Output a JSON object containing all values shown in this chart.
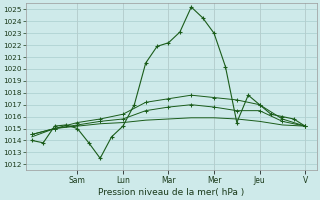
{
  "bg_color": "#ceeaea",
  "grid_color": "#aacece",
  "line_color": "#1a5c1a",
  "xlabel": "Pression niveau de la mer( hPa )",
  "ylim": [
    1011.5,
    1025.5
  ],
  "ytick_min": 1012,
  "ytick_max": 1025,
  "day_labels": [
    "Sam",
    "Lun",
    "Mar",
    "Mer",
    "Jeu",
    "V"
  ],
  "series1_x": [
    0,
    1,
    2,
    3,
    4,
    5,
    6,
    7,
    8,
    9,
    10,
    11,
    12,
    13,
    14,
    15,
    16,
    17,
    18,
    19,
    20,
    21,
    22,
    23,
    24
  ],
  "series1_y": [
    1014.0,
    1013.8,
    1015.2,
    1015.3,
    1015.0,
    1013.8,
    1012.5,
    1014.3,
    1015.2,
    1017.0,
    1020.5,
    1021.9,
    1022.2,
    1023.1,
    1025.2,
    1024.3,
    1023.0,
    1020.2,
    1015.5,
    1017.8,
    1017.0,
    1016.2,
    1016.0,
    1015.8,
    1015.2
  ],
  "series2_x": [
    0,
    2,
    4,
    6,
    8,
    10,
    12,
    14,
    16,
    18,
    20,
    22,
    24
  ],
  "series2_y": [
    1014.5,
    1015.0,
    1015.5,
    1015.8,
    1016.2,
    1017.2,
    1017.5,
    1017.8,
    1017.6,
    1017.4,
    1017.0,
    1015.8,
    1015.2
  ],
  "series3_x": [
    0,
    2,
    4,
    6,
    8,
    10,
    12,
    14,
    16,
    18,
    20,
    22,
    24
  ],
  "series3_y": [
    1014.5,
    1015.0,
    1015.3,
    1015.6,
    1015.8,
    1016.5,
    1016.8,
    1017.0,
    1016.8,
    1016.5,
    1016.5,
    1015.6,
    1015.2
  ],
  "series4_x": [
    0,
    2,
    4,
    6,
    8,
    10,
    12,
    14,
    16,
    18,
    20,
    22,
    24
  ],
  "series4_y": [
    1014.3,
    1015.0,
    1015.2,
    1015.4,
    1015.5,
    1015.7,
    1015.8,
    1015.9,
    1015.9,
    1015.8,
    1015.6,
    1015.3,
    1015.2
  ]
}
